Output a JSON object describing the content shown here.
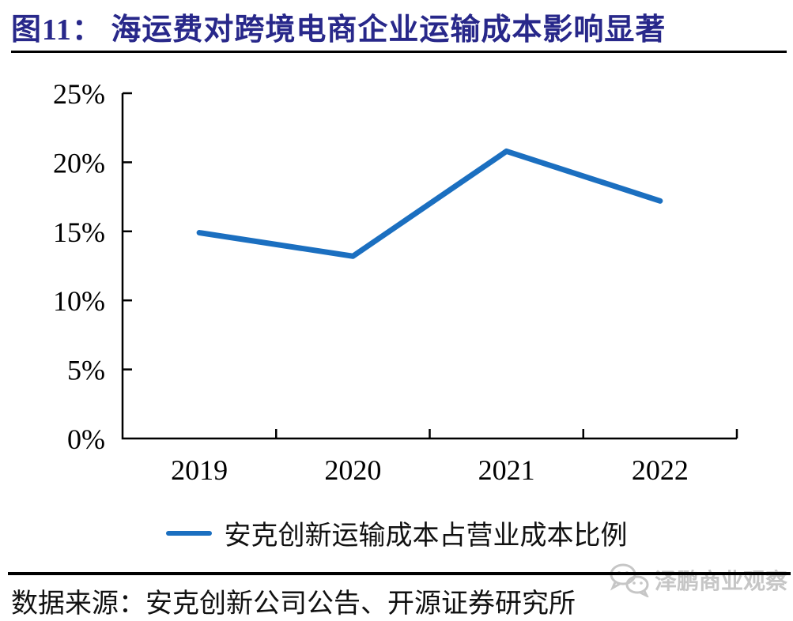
{
  "title": "图11： 海运费对跨境电商企业运输成本影响显著",
  "colors": {
    "title": "#28288a",
    "line": "#1b6fc0",
    "axis": "#000000",
    "watermark": "#c6c6c6"
  },
  "chart_data": {
    "type": "line",
    "categories": [
      "2019",
      "2020",
      "2021",
      "2022"
    ],
    "series": [
      {
        "name": "安克创新运输成本占营业成本比例",
        "values": [
          14.9,
          13.2,
          20.8,
          17.2
        ]
      }
    ],
    "title": "海运费对跨境电商企业运输成本影响显著",
    "xlabel": "",
    "ylabel": "",
    "ylim": [
      0,
      25
    ],
    "ytick_step": 5,
    "yticks": [
      "0%",
      "5%",
      "10%",
      "15%",
      "20%",
      "25%"
    ],
    "grid": false,
    "legend_position": "bottom",
    "tick_direction": "inside"
  },
  "legend": {
    "label": "安克创新运输成本占营业成本比例"
  },
  "source": {
    "label": "数据来源：安克创新公司公告、开源证券研究所"
  },
  "watermark": {
    "label": "泽鹏商业观察",
    "icon": "wechat-icon"
  }
}
